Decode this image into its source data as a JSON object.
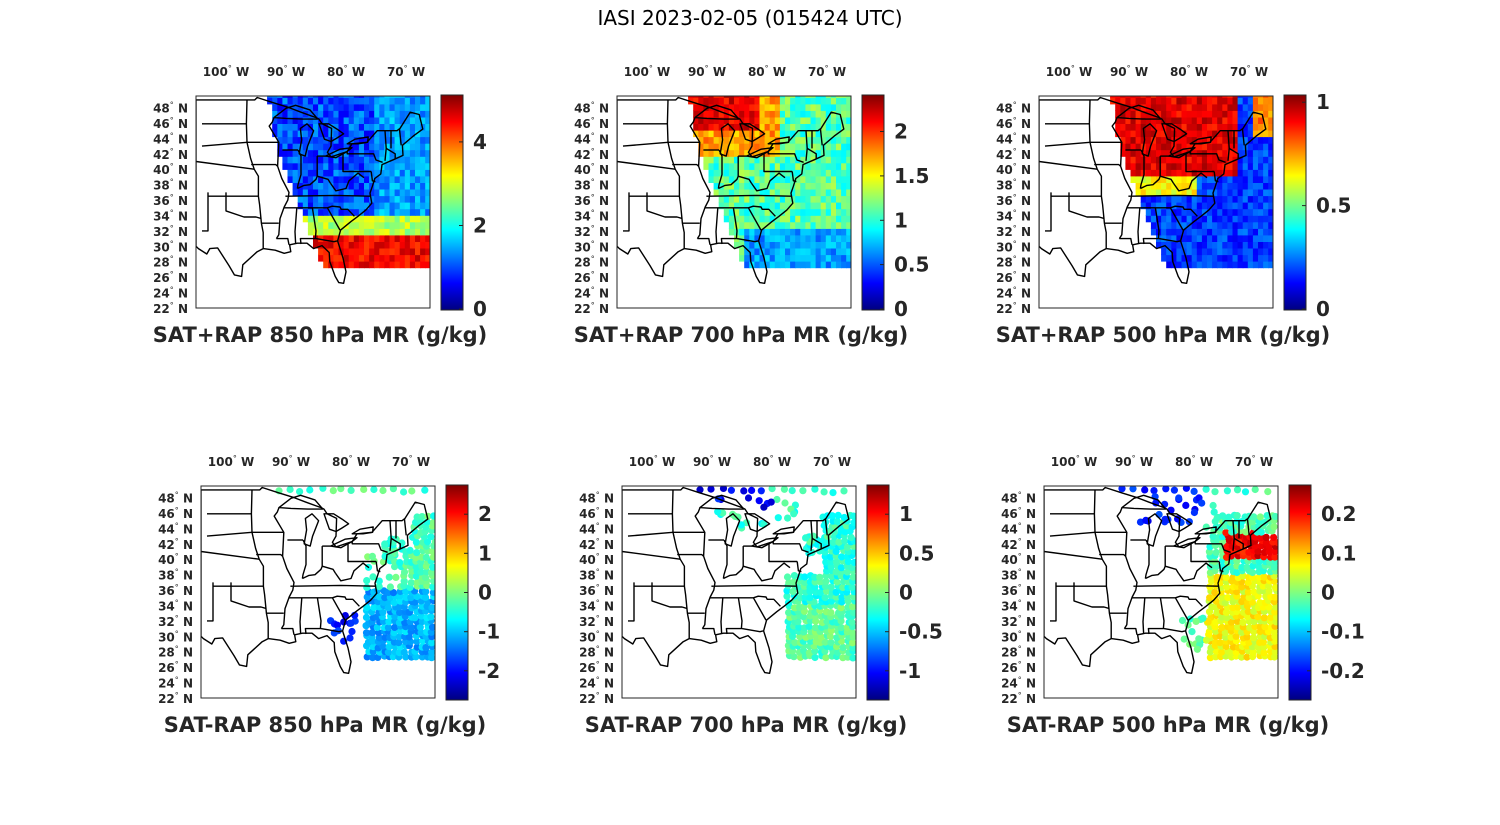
{
  "figure": {
    "title": "IASI 2023-02-05 (015424 UTC)",
    "lon_labels": [
      "100",
      "90",
      "80",
      "70"
    ],
    "lon_hemisphere": "W",
    "lat_labels": [
      "48",
      "46",
      "44",
      "42",
      "40",
      "38",
      "36",
      "34",
      "32",
      "30",
      "28",
      "26",
      "24",
      "22"
    ],
    "lat_hemisphere": "N",
    "degree_symbol": "°"
  },
  "panels": [
    {
      "caption": "SAT+RAP 850 hPa MR (g/kg)",
      "colormap": "jet",
      "style": "swath",
      "pattern": "low-south",
      "colorbar_ticks": [
        "4",
        "2",
        "0"
      ]
    },
    {
      "caption": "SAT+RAP 700 hPa MR (g/kg)",
      "colormap": "jet",
      "style": "swath",
      "pattern": "mid-north",
      "colorbar_ticks": [
        "2",
        "1.5",
        "1",
        "0.5",
        "0"
      ]
    },
    {
      "caption": "SAT+RAP 500 hPa MR (g/kg)",
      "colormap": "jet",
      "style": "swath",
      "pattern": "upper-north",
      "colorbar_ticks": [
        "1",
        "0.5",
        "0"
      ]
    },
    {
      "caption": "SAT-RAP 850 hPa MR (g/kg)",
      "colormap": "jet",
      "style": "scatter",
      "pattern": "diff-850",
      "colorbar_ticks": [
        "2",
        "1",
        "0",
        "-1",
        "-2"
      ]
    },
    {
      "caption": "SAT-RAP 700 hPa MR (g/kg)",
      "colormap": "jet",
      "style": "scatter",
      "pattern": "diff-700",
      "colorbar_ticks": [
        "1",
        "0.5",
        "0",
        "-0.5",
        "-1"
      ]
    },
    {
      "caption": "SAT-RAP 500 hPa MR (g/kg)",
      "colormap": "jet",
      "style": "scatter",
      "pattern": "diff-500",
      "colorbar_ticks": [
        "0.2",
        "0.1",
        "0",
        "-0.1",
        "-0.2"
      ]
    }
  ]
}
